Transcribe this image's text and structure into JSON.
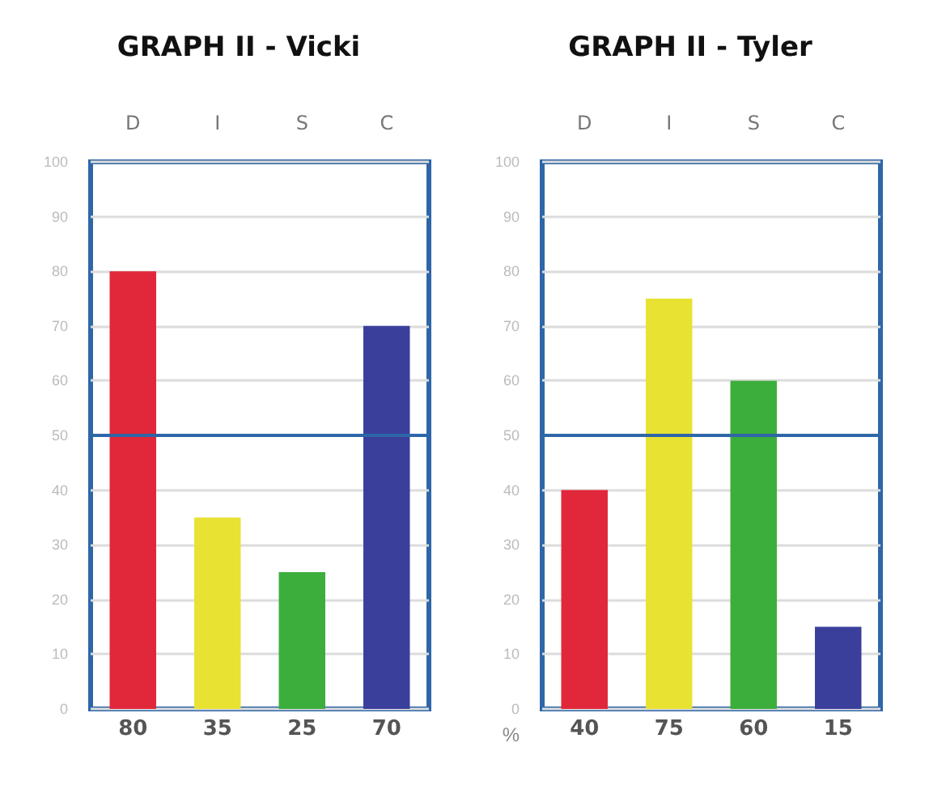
{
  "chart_data": [
    {
      "type": "bar",
      "title": "GRAPH II - Vicki",
      "categories": [
        "D",
        "I",
        "S",
        "C"
      ],
      "values": [
        80,
        35,
        25,
        70
      ],
      "colors": [
        "#e0283a",
        "#e8e232",
        "#3cae3c",
        "#3b3f9c"
      ],
      "ylim": [
        0,
        100
      ],
      "yticks": [
        0,
        10,
        20,
        30,
        40,
        50,
        60,
        70,
        80,
        90,
        100
      ],
      "grid": "y",
      "data_labels": true,
      "ref_lines": [
        {
          "axis": "y",
          "value": 50,
          "color": "#2e66a8"
        }
      ]
    },
    {
      "type": "bar",
      "title": "GRAPH II - Tyler",
      "ylabel": "%",
      "categories": [
        "D",
        "I",
        "S",
        "C"
      ],
      "values": [
        40,
        75,
        60,
        15
      ],
      "colors": [
        "#e0283a",
        "#e8e232",
        "#3cae3c",
        "#3b3f9c"
      ],
      "ylim": [
        0,
        100
      ],
      "yticks": [
        0,
        10,
        20,
        30,
        40,
        50,
        60,
        70,
        80,
        90,
        100
      ],
      "grid": "y",
      "data_labels": true,
      "ref_lines": [
        {
          "axis": "y",
          "value": 50,
          "color": "#2e66a8"
        }
      ]
    }
  ]
}
